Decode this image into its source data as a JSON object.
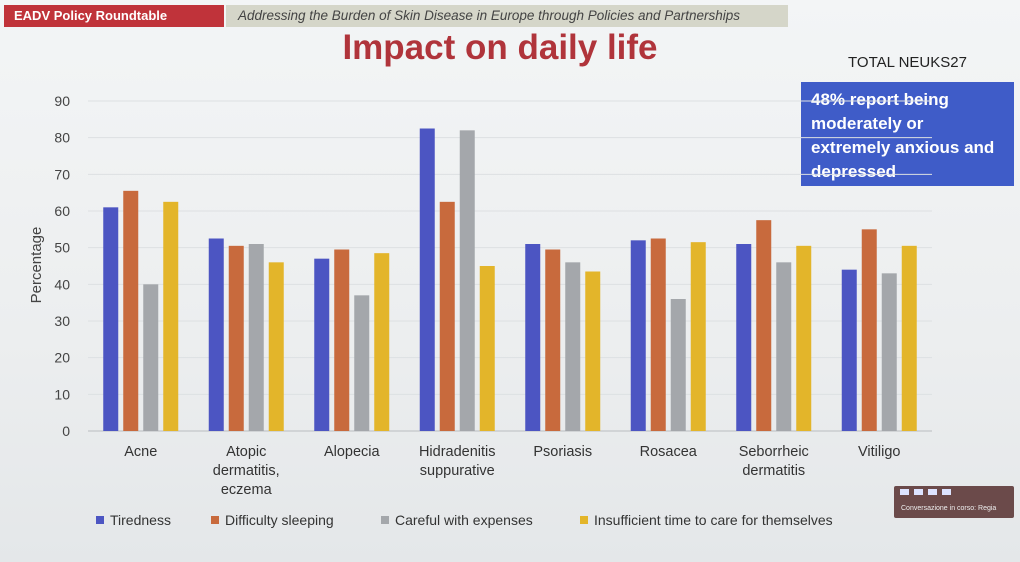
{
  "header": {
    "badge": "EADV Policy Roundtable",
    "subtitle": "Addressing the Burden of Skin Disease in Europe through Policies and Partnerships"
  },
  "slide": {
    "title": "Impact on daily life",
    "total_label": "TOTAL NEUKS27",
    "callout": "48% report being moderately or extremely anxious and depressed"
  },
  "conference_widget": {
    "text": "Conversazione in corso: Regia",
    "icons": [
      "minimize-icon",
      "window-icon",
      "list-icon",
      "grid-icon"
    ]
  },
  "colors": {
    "tiredness": "#4c55c2",
    "sleeping": "#c86a3d",
    "expenses": "#a4a7ab",
    "care": "#e3b52a",
    "callout_bg": "#3f5cc8",
    "title": "#b0343b",
    "badge_bg": "#c0333a"
  },
  "chart_data": {
    "type": "bar",
    "title": "",
    "xlabel": "",
    "ylabel": "Percentage",
    "ylim": [
      0,
      90
    ],
    "yticks": [
      0,
      10,
      20,
      30,
      40,
      50,
      60,
      70,
      80,
      90
    ],
    "grid": true,
    "legend_position": "bottom",
    "categories": [
      [
        "Acne"
      ],
      [
        "Atopic",
        "dermatitis,",
        "eczema"
      ],
      [
        "Alopecia"
      ],
      [
        "Hidradenitis",
        "suppurative"
      ],
      [
        "Psoriasis"
      ],
      [
        "Rosacea"
      ],
      [
        "Seborrheic",
        "dermatitis"
      ],
      [
        "Vitiligo"
      ]
    ],
    "series": [
      {
        "name": "Tiredness",
        "color": "#4c55c2",
        "values": [
          61,
          52.5,
          47,
          82.5,
          51,
          52,
          51,
          44
        ]
      },
      {
        "name": "Difficulty sleeping",
        "color": "#c86a3d",
        "values": [
          65.5,
          50.5,
          49.5,
          62.5,
          49.5,
          52.5,
          57.5,
          55
        ]
      },
      {
        "name": "Careful with expenses",
        "color": "#a4a7ab",
        "values": [
          40,
          51,
          37,
          82,
          46,
          36,
          46,
          43
        ]
      },
      {
        "name": "Insufficient time to care for themselves",
        "color": "#e3b52a",
        "values": [
          62.5,
          46,
          48.5,
          45,
          43.5,
          51.5,
          50.5,
          50.5
        ]
      }
    ]
  }
}
